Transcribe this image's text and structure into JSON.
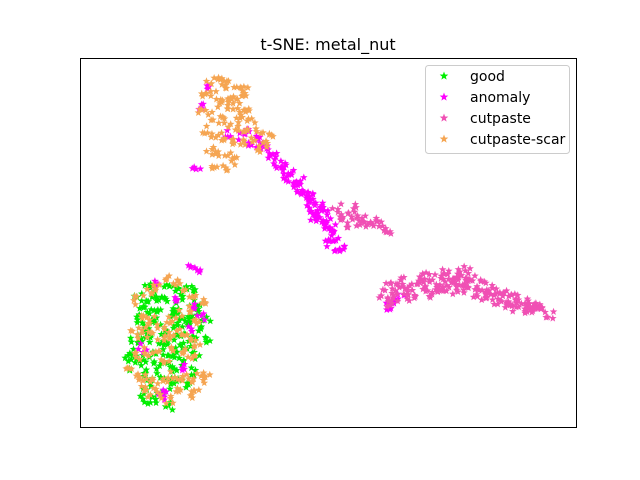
{
  "chart_data": {
    "type": "scatter",
    "title": "t-SNE: metal_nut",
    "xlabel": "",
    "ylabel": "",
    "xlim": [
      0,
      100
    ],
    "ylim": [
      0,
      100
    ],
    "ticks_visible": false,
    "grid": false,
    "legend_position": "top-right",
    "marker": "star",
    "series": [
      {
        "name": "good",
        "color": "#00ee00",
        "points": [
          [
            8,
            34
          ],
          [
            10,
            32
          ],
          [
            12,
            35
          ],
          [
            14,
            33
          ],
          [
            16,
            36
          ],
          [
            18,
            34
          ],
          [
            20,
            32
          ],
          [
            21,
            30
          ],
          [
            19,
            28
          ],
          [
            17,
            30
          ],
          [
            15,
            29
          ],
          [
            13,
            31
          ],
          [
            11,
            29
          ],
          [
            9,
            30
          ],
          [
            8,
            27
          ],
          [
            10,
            25
          ],
          [
            12,
            26
          ],
          [
            14,
            24
          ],
          [
            16,
            26
          ],
          [
            18,
            24
          ],
          [
            20,
            22
          ],
          [
            19,
            20
          ],
          [
            17,
            19
          ],
          [
            15,
            21
          ],
          [
            13,
            20
          ],
          [
            11,
            22
          ],
          [
            9,
            21
          ],
          [
            7,
            18
          ],
          [
            8,
            15
          ],
          [
            10,
            16
          ],
          [
            12,
            14
          ],
          [
            14,
            15
          ],
          [
            16,
            13
          ],
          [
            18,
            15
          ],
          [
            20,
            12
          ],
          [
            21,
            17
          ],
          [
            22,
            24
          ],
          [
            23,
            21
          ],
          [
            11,
            9
          ],
          [
            13,
            7
          ],
          [
            15,
            8
          ],
          [
            9,
            6
          ],
          [
            12,
            4
          ],
          [
            7,
            12
          ],
          [
            17,
            10
          ],
          [
            19,
            8
          ],
          [
            6,
            16
          ],
          [
            22,
            31
          ],
          [
            14,
            37
          ],
          [
            16,
            31
          ],
          [
            10,
            37
          ],
          [
            12,
            28
          ],
          [
            18,
            27
          ],
          [
            20,
            27
          ],
          [
            15,
            11
          ],
          [
            7,
            22
          ],
          [
            23,
            27
          ],
          [
            9,
            12
          ],
          [
            13,
            11
          ],
          [
            17,
            22
          ],
          [
            14,
            18
          ],
          [
            16,
            17
          ],
          [
            11,
            18
          ],
          [
            19,
            36
          ],
          [
            21,
            35
          ],
          [
            13,
            33
          ],
          [
            15,
            2
          ],
          [
            10,
            3
          ]
        ]
      },
      {
        "name": "anomaly",
        "color": "#ff00ff",
        "points": [
          [
            31,
            81
          ],
          [
            33,
            79
          ],
          [
            35,
            78
          ],
          [
            37,
            76
          ],
          [
            39,
            73
          ],
          [
            40,
            71
          ],
          [
            41,
            69
          ],
          [
            43,
            67
          ],
          [
            44,
            65
          ],
          [
            45,
            63
          ],
          [
            46,
            61
          ],
          [
            47,
            59
          ],
          [
            48,
            58
          ],
          [
            49,
            56
          ],
          [
            50,
            54
          ],
          [
            51,
            52
          ],
          [
            52,
            51
          ],
          [
            53,
            49
          ],
          [
            42,
            70
          ],
          [
            44,
            68
          ],
          [
            46,
            64
          ],
          [
            48,
            60
          ],
          [
            50,
            57
          ],
          [
            38,
            75
          ],
          [
            40,
            73
          ],
          [
            42,
            68
          ],
          [
            44,
            66
          ],
          [
            46,
            62
          ],
          [
            48,
            61
          ],
          [
            47,
            57
          ],
          [
            36,
            78
          ],
          [
            34,
            80
          ],
          [
            32,
            82
          ],
          [
            49,
            59
          ],
          [
            51,
            54
          ],
          [
            50,
            50
          ],
          [
            52,
            48
          ],
          [
            24,
            95
          ],
          [
            22,
            90
          ],
          [
            21,
            72
          ],
          [
            28,
            82
          ],
          [
            63,
            31
          ],
          [
            64,
            33
          ],
          [
            66,
            34
          ],
          [
            20,
            31
          ],
          [
            21,
            42
          ],
          [
            20,
            43
          ],
          [
            12,
            38
          ],
          [
            16,
            33
          ],
          [
            22,
            28
          ],
          [
            13,
            5
          ],
          [
            14,
            6
          ],
          [
            9,
            19
          ],
          [
            18,
            13
          ],
          [
            19,
            24
          ]
        ]
      },
      {
        "name": "cutpaste",
        "color": "#f050b4",
        "points": [
          [
            62,
            35
          ],
          [
            63,
            37
          ],
          [
            64,
            33
          ],
          [
            65,
            36
          ],
          [
            66,
            38
          ],
          [
            67,
            36
          ],
          [
            68,
            34
          ],
          [
            69,
            37
          ],
          [
            70,
            39
          ],
          [
            71,
            36
          ],
          [
            72,
            38
          ],
          [
            73,
            40
          ],
          [
            74,
            37
          ],
          [
            75,
            39
          ],
          [
            76,
            41
          ],
          [
            77,
            38
          ],
          [
            78,
            39
          ],
          [
            79,
            37
          ],
          [
            80,
            36
          ],
          [
            81,
            38
          ],
          [
            82,
            36
          ],
          [
            83,
            35
          ],
          [
            84,
            36
          ],
          [
            85,
            34
          ],
          [
            86,
            35
          ],
          [
            87,
            33
          ],
          [
            88,
            34
          ],
          [
            89,
            32
          ],
          [
            90,
            33
          ],
          [
            91,
            31
          ],
          [
            92,
            32
          ],
          [
            93,
            31
          ],
          [
            94,
            30
          ],
          [
            95,
            31
          ],
          [
            96,
            30
          ],
          [
            97,
            31
          ],
          [
            98,
            30
          ],
          [
            99,
            29
          ],
          [
            74,
            36
          ],
          [
            76,
            37
          ],
          [
            78,
            36
          ],
          [
            80,
            40
          ],
          [
            82,
            40
          ],
          [
            84,
            38
          ],
          [
            86,
            37
          ],
          [
            88,
            36
          ],
          [
            90,
            35
          ],
          [
            92,
            34
          ],
          [
            94,
            33
          ],
          [
            96,
            32
          ],
          [
            63,
            32
          ],
          [
            65,
            34
          ],
          [
            67,
            39
          ],
          [
            69,
            35
          ],
          [
            71,
            40
          ],
          [
            73,
            35
          ],
          [
            75,
            36
          ],
          [
            77,
            40
          ],
          [
            79,
            41
          ],
          [
            81,
            42
          ],
          [
            52,
            60
          ],
          [
            54,
            58
          ],
          [
            56,
            57
          ],
          [
            58,
            57
          ],
          [
            60,
            56
          ],
          [
            61,
            55
          ],
          [
            62,
            54
          ],
          [
            63,
            53
          ],
          [
            55,
            55
          ],
          [
            57,
            56
          ],
          [
            59,
            55
          ],
          [
            53,
            57
          ],
          [
            56,
            60
          ]
        ]
      },
      {
        "name": "cutpaste-scar",
        "color": "#f5a552",
        "points": [
          [
            24,
            97
          ],
          [
            26,
            98
          ],
          [
            28,
            97
          ],
          [
            30,
            96
          ],
          [
            32,
            95
          ],
          [
            23,
            94
          ],
          [
            25,
            93
          ],
          [
            27,
            92
          ],
          [
            29,
            91
          ],
          [
            31,
            90
          ],
          [
            22,
            88
          ],
          [
            24,
            87
          ],
          [
            26,
            86
          ],
          [
            28,
            85
          ],
          [
            30,
            84
          ],
          [
            23,
            83
          ],
          [
            25,
            82
          ],
          [
            27,
            81
          ],
          [
            29,
            80
          ],
          [
            31,
            79
          ],
          [
            24,
            77
          ],
          [
            26,
            76
          ],
          [
            28,
            75
          ],
          [
            25,
            73
          ],
          [
            27,
            72
          ],
          [
            29,
            74
          ],
          [
            32,
            82
          ],
          [
            33,
            80
          ],
          [
            30,
            87
          ],
          [
            32,
            88
          ],
          [
            33,
            85
          ],
          [
            35,
            83
          ],
          [
            37,
            81
          ],
          [
            36,
            79
          ],
          [
            34,
            77
          ],
          [
            27,
            95
          ],
          [
            29,
            93
          ],
          [
            31,
            93
          ],
          [
            26,
            90
          ],
          [
            28,
            89
          ],
          [
            8,
            33
          ],
          [
            10,
            35
          ],
          [
            12,
            37
          ],
          [
            14,
            39
          ],
          [
            16,
            38
          ],
          [
            18,
            37
          ],
          [
            20,
            35
          ],
          [
            22,
            33
          ],
          [
            9,
            28
          ],
          [
            11,
            27
          ],
          [
            13,
            25
          ],
          [
            15,
            27
          ],
          [
            17,
            29
          ],
          [
            19,
            30
          ],
          [
            21,
            27
          ],
          [
            7,
            23
          ],
          [
            9,
            24
          ],
          [
            11,
            23
          ],
          [
            13,
            22
          ],
          [
            15,
            23
          ],
          [
            17,
            24
          ],
          [
            19,
            22
          ],
          [
            21,
            20
          ],
          [
            8,
            17
          ],
          [
            10,
            18
          ],
          [
            12,
            17
          ],
          [
            14,
            16
          ],
          [
            16,
            18
          ],
          [
            18,
            18
          ],
          [
            20,
            17
          ],
          [
            6,
            12
          ],
          [
            8,
            11
          ],
          [
            10,
            10
          ],
          [
            12,
            9
          ],
          [
            14,
            10
          ],
          [
            16,
            11
          ],
          [
            18,
            10
          ],
          [
            20,
            9
          ],
          [
            22,
            11
          ],
          [
            9,
            7
          ],
          [
            11,
            6
          ],
          [
            13,
            5
          ],
          [
            15,
            4
          ],
          [
            17,
            6
          ],
          [
            19,
            5
          ],
          [
            21,
            7
          ],
          [
            23,
            10
          ]
        ]
      }
    ]
  }
}
